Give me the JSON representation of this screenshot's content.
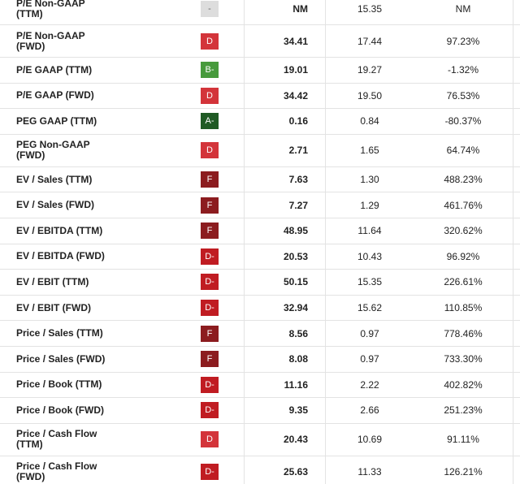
{
  "table": {
    "grade_colors": {
      "-": "#dddddd",
      "D": "#d3343a",
      "D-": "#c01c22",
      "F": "#8c1c1f",
      "B-": "#479a3c",
      "A-": "#1f5a24"
    },
    "rows": [
      [
        "P/E Non-GAAP (TTM)",
        "-",
        "NM",
        "15.35",
        "NM"
      ],
      [
        "P/E Non-GAAP (FWD)",
        "D",
        "34.41",
        "17.44",
        "97.23%"
      ],
      [
        "P/E GAAP (TTM)",
        "B-",
        "19.01",
        "19.27",
        "-1.32%"
      ],
      [
        "P/E GAAP (FWD)",
        "D",
        "34.42",
        "19.50",
        "76.53%"
      ],
      [
        "PEG GAAP (TTM)",
        "A-",
        "0.16",
        "0.84",
        "-80.37%"
      ],
      [
        "PEG Non-GAAP (FWD)",
        "D",
        "2.71",
        "1.65",
        "64.74%"
      ],
      [
        "EV / Sales (TTM)",
        "F",
        "7.63",
        "1.30",
        "488.23%"
      ],
      [
        "EV / Sales (FWD)",
        "F",
        "7.27",
        "1.29",
        "461.76%"
      ],
      [
        "EV / EBITDA (TTM)",
        "F",
        "48.95",
        "11.64",
        "320.62%"
      ],
      [
        "EV / EBITDA (FWD)",
        "D-",
        "20.53",
        "10.43",
        "96.92%"
      ],
      [
        "EV / EBIT (TTM)",
        "D-",
        "50.15",
        "15.35",
        "226.61%"
      ],
      [
        "EV / EBIT (FWD)",
        "D-",
        "32.94",
        "15.62",
        "110.85%"
      ],
      [
        "Price / Sales (TTM)",
        "F",
        "8.56",
        "0.97",
        "778.46%"
      ],
      [
        "Price / Sales (FWD)",
        "F",
        "8.08",
        "0.97",
        "733.30%"
      ],
      [
        "Price / Book (TTM)",
        "D-",
        "11.16",
        "2.22",
        "402.82%"
      ],
      [
        "Price / Book (FWD)",
        "D-",
        "9.35",
        "2.66",
        "251.23%"
      ],
      [
        "Price / Cash Flow (TTM)",
        "D",
        "20.43",
        "10.69",
        "91.11%"
      ],
      [
        "Price / Cash Flow (FWD)",
        "D-",
        "25.63",
        "11.33",
        "126.21%"
      ]
    ]
  }
}
